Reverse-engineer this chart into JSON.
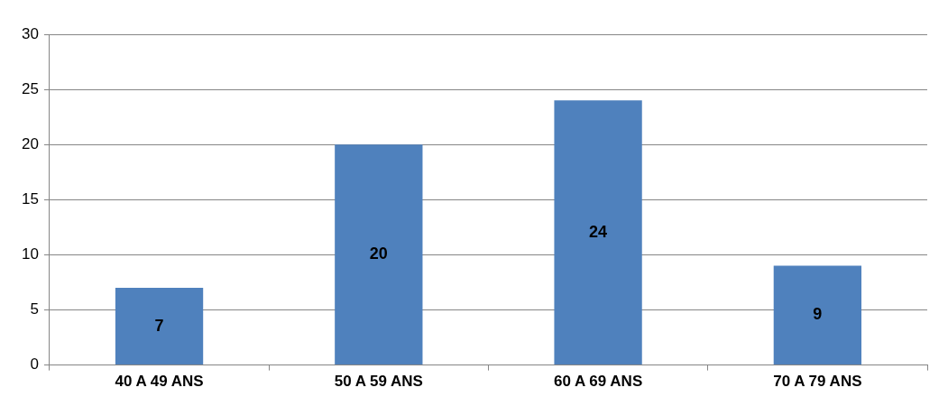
{
  "chart_data": {
    "type": "bar",
    "categories": [
      "40 A 49 ANS",
      "50 A 59 ANS",
      "60 A 69 ANS",
      "70 A 79 ANS"
    ],
    "values": [
      7,
      20,
      24,
      9
    ],
    "color": "#4f81bd",
    "ylim": [
      0,
      30
    ],
    "yticks": [
      0,
      5,
      10,
      15,
      20,
      25,
      30
    ],
    "grid": "y",
    "data_labels": true,
    "legend": false
  }
}
